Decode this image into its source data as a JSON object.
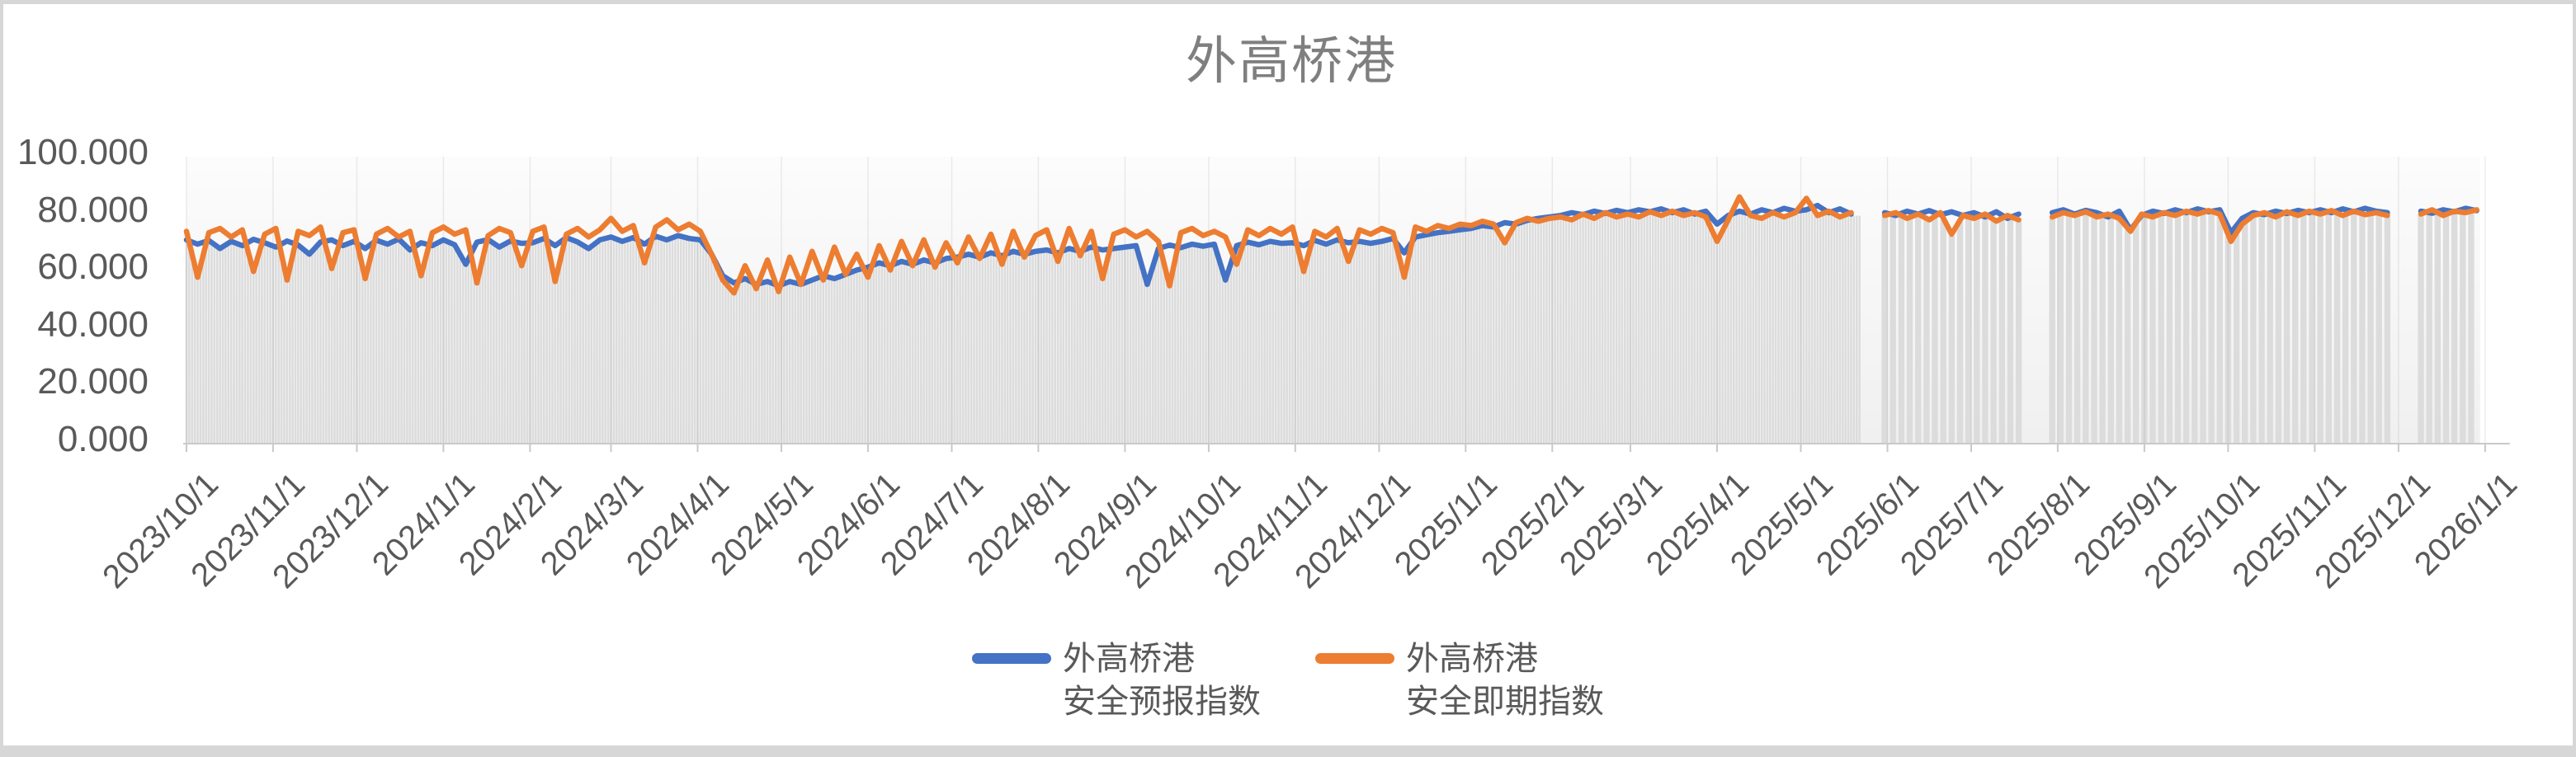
{
  "window": {
    "frame_color": "#d7d7d7",
    "card_background": "#ffffff"
  },
  "chart_data": {
    "type": "line",
    "title": "外高桥港",
    "title_color": "#7f7f7f",
    "axis_label_color": "#595959",
    "axis_line_color": "#c9c9c9",
    "background_bar_color": "#dcdcdc",
    "plot_gradient": [
      "#fcfcfc",
      "#f0f0f0"
    ],
    "grid": "vertical-month-lines-faint",
    "legend_position": "bottom-center",
    "ylim": [
      0,
      100
    ],
    "y_tick_values": [
      0,
      20,
      40,
      60,
      80,
      100
    ],
    "y_tick_labels": [
      "0.000",
      "20.000",
      "40.000",
      "60.000",
      "80.000",
      "100.000"
    ],
    "x_start_date": "2023/10/1",
    "x_tick_labels": [
      "2023/10/1",
      "2023/11/1",
      "2023/12/1",
      "2024/1/1",
      "2024/2/1",
      "2024/3/1",
      "2024/4/1",
      "2024/5/1",
      "2024/6/1",
      "2024/7/1",
      "2024/8/1",
      "2024/9/1",
      "2024/10/1",
      "2024/11/1",
      "2024/12/1",
      "2025/1/1",
      "2025/2/1",
      "2025/3/1",
      "2025/4/1",
      "2025/5/1",
      "2025/6/1",
      "2025/7/1",
      "2025/8/1",
      "2025/9/1",
      "2025/10/1",
      "2025/11/1",
      "2025/12/1",
      "2026/1/1"
    ],
    "x_tick_days": [
      0,
      31,
      61,
      92,
      123,
      152,
      183,
      213,
      244,
      274,
      305,
      336,
      366,
      397,
      427,
      458,
      489,
      517,
      548,
      578,
      609,
      639,
      670,
      701,
      731,
      762,
      792,
      823
    ],
    "sample_interval_days": 4,
    "gaps_days": [
      [
        600,
        607
      ],
      [
        658,
        666
      ],
      [
        789,
        799
      ]
    ],
    "daily_bars_until_day": 600,
    "sparse_bar_step_days": 3,
    "series": [
      {
        "name": "外高桥港 安全预报指数",
        "legend_lines": [
          "外高桥港",
          "安全预报指数"
        ],
        "color": "#4472C4",
        "values": [
          71.0,
          69.5,
          70.8,
          68.0,
          70.5,
          69.0,
          71.2,
          70.0,
          68.5,
          70.6,
          69.2,
          66.0,
          70.3,
          71.0,
          69.0,
          70.5,
          68.0,
          70.9,
          69.5,
          71.3,
          67.5,
          70.0,
          69.0,
          71.0,
          69.3,
          62.5,
          70.2,
          71.1,
          68.5,
          70.6,
          69.8,
          70.0,
          71.5,
          69.0,
          71.8,
          70.3,
          68.0,
          71.0,
          72.0,
          70.5,
          71.8,
          69.5,
          72.3,
          71.0,
          72.5,
          71.5,
          71.0,
          66.0,
          58.5,
          56.0,
          57.5,
          55.5,
          56.5,
          55.0,
          56.5,
          55.5,
          57.0,
          58.5,
          57.5,
          59.0,
          60.5,
          61.5,
          63.0,
          62.0,
          63.5,
          62.5,
          64.0,
          63.0,
          64.5,
          65.0,
          66.0,
          65.0,
          66.5,
          65.5,
          67.0,
          66.0,
          67.0,
          67.5,
          66.5,
          68.0,
          67.0,
          68.5,
          67.5,
          68.0,
          68.5,
          69.0,
          55.5,
          68.0,
          69.2,
          68.3,
          69.5,
          68.8,
          69.5,
          57.0,
          69.0,
          70.2,
          69.3,
          70.5,
          69.8,
          70.0,
          69.0,
          70.8,
          69.5,
          71.0,
          70.0,
          70.5,
          69.8,
          70.5,
          71.5,
          66.5,
          72.0,
          72.8,
          73.5,
          74.0,
          74.5,
          75.0,
          76.0,
          75.5,
          77.0,
          76.5,
          77.8,
          78.5,
          79.0,
          79.5,
          80.5,
          79.8,
          81.0,
          80.2,
          81.3,
          80.5,
          81.5,
          80.8,
          81.8,
          80.5,
          81.5,
          80.0,
          81.0,
          76.5,
          79.5,
          81.0,
          80.0,
          81.5,
          80.5,
          82.0,
          81.0,
          81.5,
          83.0,
          80.5,
          81.8,
          80.0,
          null,
          null,
          80.5,
          79.5,
          81.0,
          80.0,
          81.2,
          79.8,
          80.8,
          79.5,
          80.5,
          79.0,
          80.8,
          78.5,
          80.0,
          null,
          null,
          80.5,
          81.5,
          80.0,
          81.3,
          80.5,
          79.0,
          81.0,
          74.5,
          79.5,
          81.0,
          80.2,
          81.5,
          80.5,
          81.8,
          80.8,
          81.5,
          73.5,
          78.5,
          80.5,
          79.8,
          81.0,
          80.2,
          81.3,
          80.5,
          81.5,
          80.5,
          81.8,
          80.8,
          82.0,
          81.0,
          80.5,
          null,
          null,
          81.0,
          80.3,
          81.5,
          80.8,
          82.0,
          81.2
        ]
      },
      {
        "name": "外高桥港 安全即期指数",
        "legend_lines": [
          "外高桥港",
          "安全即期指数"
        ],
        "color": "#ED7D31",
        "values": [
          74.0,
          58.0,
          73.5,
          75.0,
          72.0,
          74.5,
          60.0,
          73.0,
          75.0,
          57.0,
          74.0,
          72.5,
          75.5,
          61.0,
          73.5,
          74.5,
          57.5,
          73.0,
          75.0,
          72.0,
          74.0,
          58.5,
          73.5,
          75.5,
          73.0,
          74.5,
          56.0,
          72.5,
          75.0,
          73.5,
          62.0,
          74.0,
          75.5,
          56.5,
          73.0,
          75.0,
          72.0,
          74.5,
          78.5,
          74.0,
          76.0,
          63.0,
          75.5,
          78.0,
          74.5,
          76.5,
          74.0,
          66.0,
          57.0,
          52.5,
          62.0,
          54.0,
          64.0,
          53.0,
          65.0,
          55.5,
          67.0,
          57.0,
          68.5,
          59.0,
          66.0,
          58.0,
          69.0,
          60.5,
          70.5,
          62.0,
          71.0,
          61.5,
          70.0,
          63.0,
          72.0,
          64.5,
          73.0,
          62.5,
          74.0,
          65.0,
          72.5,
          74.5,
          63.5,
          75.0,
          65.5,
          74.0,
          57.5,
          73.0,
          74.5,
          72.0,
          74.0,
          70.5,
          55.0,
          73.5,
          75.0,
          72.5,
          74.0,
          72.0,
          62.5,
          74.5,
          72.5,
          75.0,
          73.0,
          75.5,
          60.0,
          74.0,
          72.0,
          75.0,
          63.5,
          74.5,
          73.0,
          75.0,
          73.5,
          58.0,
          75.5,
          74.0,
          76.0,
          75.0,
          76.5,
          76.0,
          77.5,
          76.5,
          70.0,
          77.0,
          78.5,
          77.5,
          78.5,
          79.0,
          78.0,
          80.0,
          78.5,
          80.5,
          79.0,
          80.0,
          79.0,
          80.8,
          79.5,
          81.0,
          79.5,
          80.5,
          79.0,
          70.5,
          78.0,
          86.0,
          79.5,
          78.5,
          80.5,
          79.0,
          80.5,
          85.5,
          79.5,
          81.0,
          79.0,
          80.5,
          null,
          null,
          79.5,
          80.5,
          78.5,
          80.0,
          78.0,
          80.5,
          73.0,
          79.5,
          78.5,
          80.0,
          77.5,
          79.5,
          78.0,
          null,
          null,
          79.0,
          80.5,
          79.5,
          80.8,
          79.0,
          80.0,
          78.5,
          74.0,
          80.0,
          79.0,
          80.5,
          79.5,
          81.0,
          80.0,
          81.2,
          80.0,
          70.5,
          76.5,
          79.5,
          80.5,
          79.0,
          80.8,
          79.5,
          81.0,
          80.0,
          81.2,
          79.5,
          81.0,
          79.8,
          80.5,
          79.5,
          null,
          null,
          80.0,
          81.5,
          79.5,
          81.0,
          80.5,
          81.5
        ]
      }
    ]
  }
}
